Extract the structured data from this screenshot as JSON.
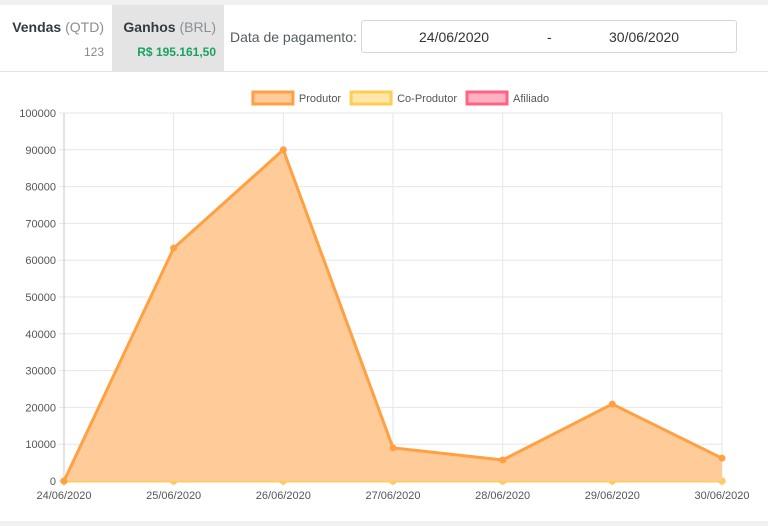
{
  "tabs": {
    "vendas": {
      "label": "Vendas",
      "unit": "(QTD)",
      "value": "123"
    },
    "ganhos": {
      "label": "Ganhos",
      "unit": "(BRL)",
      "value": "R$ 195.161,50"
    }
  },
  "date_filter": {
    "label": "Data de pagamento:",
    "start": "24/06/2020",
    "separator": "-",
    "end": "30/06/2020"
  },
  "colors": {
    "produtor_line": "#ffa143",
    "produtor_fill": "#ffcc99",
    "coprodutor_line": "#ffcd56",
    "coprodutor_fill": "#ffe6a9",
    "afiliado_line": "#ff6384",
    "afiliado_fill": "#ffb1c1"
  },
  "chart_data": {
    "type": "area",
    "x": [
      "24/06/2020",
      "25/06/2020",
      "26/06/2020",
      "27/06/2020",
      "28/06/2020",
      "29/06/2020",
      "30/06/2020"
    ],
    "ylim": [
      0,
      100000
    ],
    "y_ticks": [
      "0",
      "10000",
      "20000",
      "30000",
      "40000",
      "50000",
      "60000",
      "70000",
      "80000",
      "90000",
      "100000"
    ],
    "grid": true,
    "legend_position": "top",
    "series": [
      {
        "name": "Produtor",
        "values": [
          0,
          63300,
          90000,
          9000,
          5700,
          20900,
          6200
        ]
      },
      {
        "name": "Co-Produtor",
        "values": [
          0,
          0,
          0,
          0,
          0,
          0,
          0
        ]
      },
      {
        "name": "Afiliado",
        "values": [
          0,
          0,
          0,
          0,
          0,
          0,
          0
        ]
      }
    ]
  }
}
